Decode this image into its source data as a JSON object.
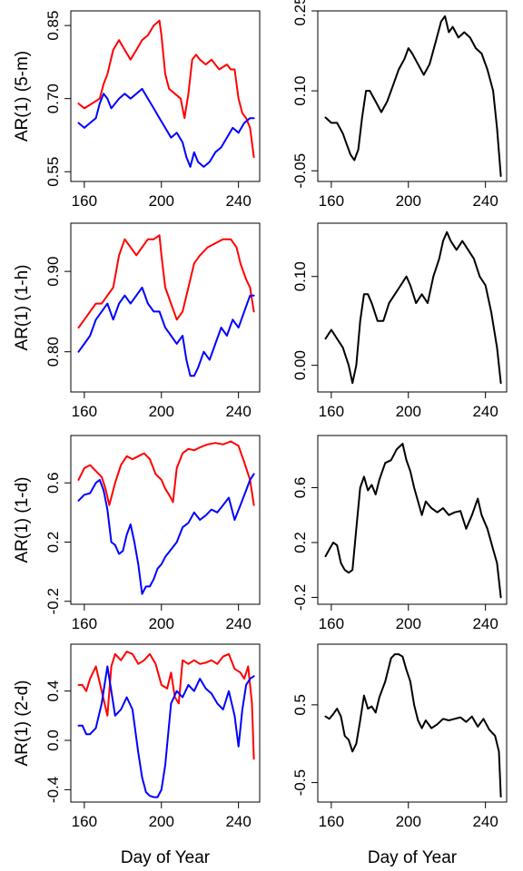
{
  "chart_data": [
    {
      "type": "line",
      "ylabel": "AR(1) (5-m)",
      "xlabel": "",
      "xlim": [
        153,
        251
      ],
      "ylim": [
        0.53,
        0.88
      ],
      "xticks": [
        160,
        200,
        240
      ],
      "yticks": [
        0.55,
        0.7,
        0.85
      ],
      "ytick_labels": [
        "0.55",
        "0.70",
        "0.85"
      ],
      "series": [
        {
          "color": "#ff0000",
          "x": [
            157,
            160,
            164,
            168,
            170,
            172,
            175,
            178,
            181,
            184,
            187,
            190,
            193,
            196,
            199,
            200,
            202,
            204,
            207,
            210,
            212,
            214,
            216,
            218,
            220,
            223,
            226,
            230,
            234,
            236,
            238,
            240,
            242,
            244,
            246,
            248
          ],
          "y": [
            0.69,
            0.68,
            0.69,
            0.7,
            0.73,
            0.75,
            0.8,
            0.82,
            0.8,
            0.78,
            0.8,
            0.82,
            0.83,
            0.85,
            0.86,
            0.83,
            0.75,
            0.72,
            0.71,
            0.7,
            0.66,
            0.71,
            0.78,
            0.79,
            0.78,
            0.77,
            0.78,
            0.76,
            0.77,
            0.76,
            0.76,
            0.7,
            0.67,
            0.66,
            0.64,
            0.58
          ]
        },
        {
          "color": "#0000ff",
          "x": [
            157,
            160,
            163,
            166,
            168,
            170,
            172,
            174,
            176,
            178,
            181,
            184,
            187,
            190,
            193,
            196,
            199,
            202,
            205,
            208,
            211,
            213,
            215,
            217,
            219,
            222,
            225,
            228,
            231,
            234,
            237,
            240,
            243,
            246,
            248
          ],
          "y": [
            0.65,
            0.64,
            0.65,
            0.66,
            0.69,
            0.71,
            0.7,
            0.68,
            0.69,
            0.7,
            0.71,
            0.7,
            0.71,
            0.72,
            0.7,
            0.68,
            0.66,
            0.64,
            0.62,
            0.63,
            0.61,
            0.58,
            0.56,
            0.59,
            0.57,
            0.56,
            0.57,
            0.59,
            0.6,
            0.62,
            0.64,
            0.63,
            0.65,
            0.66,
            0.66
          ]
        }
      ]
    },
    {
      "type": "line",
      "xlabel": "",
      "ylabel": "",
      "xlim": [
        153,
        251
      ],
      "ylim": [
        -0.07,
        0.25
      ],
      "xticks": [
        160,
        200,
        240
      ],
      "yticks": [
        -0.05,
        0.1,
        0.25
      ],
      "ytick_labels": [
        "-0.05",
        "0.10",
        "0.25"
      ],
      "series": [
        {
          "color": "#000000",
          "x": [
            157,
            160,
            163,
            166,
            168,
            170,
            172,
            174,
            176,
            178,
            180,
            183,
            186,
            189,
            192,
            195,
            198,
            200,
            202,
            205,
            208,
            211,
            214,
            217,
            219,
            221,
            223,
            226,
            229,
            232,
            235,
            238,
            241,
            244,
            246,
            248
          ],
          "y": [
            0.05,
            0.04,
            0.04,
            0.02,
            0.0,
            -0.02,
            -0.03,
            -0.01,
            0.05,
            0.1,
            0.1,
            0.08,
            0.06,
            0.08,
            0.11,
            0.14,
            0.16,
            0.18,
            0.17,
            0.15,
            0.13,
            0.15,
            0.19,
            0.23,
            0.24,
            0.21,
            0.22,
            0.2,
            0.21,
            0.2,
            0.18,
            0.17,
            0.14,
            0.1,
            0.03,
            -0.06
          ]
        }
      ]
    },
    {
      "type": "line",
      "ylabel": "AR(1) (1-h)",
      "xlabel": "",
      "xlim": [
        153,
        251
      ],
      "ylim": [
        0.75,
        0.96
      ],
      "xticks": [
        160,
        200,
        240
      ],
      "yticks": [
        0.8,
        0.9
      ],
      "ytick_labels": [
        "0.80",
        "0.90"
      ],
      "series": [
        {
          "color": "#ff0000",
          "x": [
            157,
            160,
            163,
            166,
            169,
            172,
            175,
            178,
            181,
            184,
            187,
            190,
            193,
            196,
            199,
            200,
            202,
            205,
            208,
            211,
            214,
            217,
            220,
            224,
            228,
            232,
            236,
            239,
            241,
            244,
            246,
            248
          ],
          "y": [
            0.83,
            0.84,
            0.85,
            0.86,
            0.86,
            0.87,
            0.88,
            0.92,
            0.94,
            0.93,
            0.92,
            0.93,
            0.94,
            0.94,
            0.945,
            0.92,
            0.88,
            0.86,
            0.84,
            0.85,
            0.88,
            0.91,
            0.92,
            0.93,
            0.935,
            0.94,
            0.94,
            0.93,
            0.91,
            0.89,
            0.88,
            0.85
          ]
        },
        {
          "color": "#0000ff",
          "x": [
            157,
            160,
            163,
            166,
            169,
            172,
            175,
            178,
            181,
            184,
            187,
            190,
            193,
            196,
            199,
            202,
            205,
            208,
            211,
            213,
            215,
            217,
            219,
            222,
            225,
            228,
            231,
            234,
            237,
            240,
            243,
            246,
            248
          ],
          "y": [
            0.8,
            0.81,
            0.82,
            0.84,
            0.85,
            0.86,
            0.84,
            0.86,
            0.87,
            0.86,
            0.87,
            0.88,
            0.86,
            0.85,
            0.85,
            0.83,
            0.82,
            0.81,
            0.82,
            0.79,
            0.77,
            0.77,
            0.78,
            0.8,
            0.79,
            0.81,
            0.83,
            0.82,
            0.84,
            0.83,
            0.85,
            0.87,
            0.87
          ]
        }
      ]
    },
    {
      "type": "line",
      "xlabel": "",
      "ylabel": "",
      "xlim": [
        153,
        251
      ],
      "ylim": [
        -0.03,
        0.16
      ],
      "xticks": [
        160,
        200,
        240
      ],
      "yticks": [
        0.0,
        0.1
      ],
      "ytick_labels": [
        "0.00",
        "0.10"
      ],
      "series": [
        {
          "color": "#000000",
          "x": [
            157,
            160,
            163,
            166,
            169,
            171,
            173,
            175,
            177,
            179,
            181,
            184,
            187,
            190,
            193,
            196,
            199,
            201,
            204,
            207,
            210,
            213,
            216,
            218,
            220,
            222,
            225,
            228,
            231,
            234,
            237,
            240,
            243,
            246,
            248
          ],
          "y": [
            0.03,
            0.04,
            0.03,
            0.02,
            0.0,
            -0.02,
            0.0,
            0.05,
            0.08,
            0.08,
            0.07,
            0.05,
            0.05,
            0.07,
            0.08,
            0.09,
            0.1,
            0.09,
            0.07,
            0.08,
            0.07,
            0.1,
            0.12,
            0.14,
            0.15,
            0.14,
            0.13,
            0.14,
            0.13,
            0.12,
            0.1,
            0.09,
            0.06,
            0.02,
            -0.02
          ]
        }
      ]
    },
    {
      "type": "line",
      "ylabel": "AR(1) (1-d)",
      "xlabel": "",
      "xlim": [
        153,
        251
      ],
      "ylim": [
        -0.22,
        0.92
      ],
      "xticks": [
        160,
        200,
        240
      ],
      "yticks": [
        -0.2,
        0.2,
        0.6
      ],
      "ytick_labels": [
        "-0.2",
        "0.2",
        "0.6"
      ],
      "series": [
        {
          "color": "#ff0000",
          "x": [
            157,
            160,
            163,
            166,
            169,
            171,
            173,
            176,
            179,
            182,
            185,
            188,
            191,
            194,
            197,
            200,
            202,
            204,
            206,
            208,
            211,
            214,
            217,
            220,
            224,
            228,
            232,
            236,
            240,
            243,
            246,
            248
          ],
          "y": [
            0.62,
            0.7,
            0.72,
            0.68,
            0.64,
            0.56,
            0.45,
            0.6,
            0.72,
            0.78,
            0.76,
            0.78,
            0.8,
            0.76,
            0.66,
            0.62,
            0.56,
            0.52,
            0.47,
            0.7,
            0.8,
            0.83,
            0.82,
            0.84,
            0.86,
            0.87,
            0.86,
            0.88,
            0.85,
            0.74,
            0.62,
            0.45
          ]
        },
        {
          "color": "#0000ff",
          "x": [
            157,
            160,
            163,
            166,
            168,
            170,
            172,
            174,
            176,
            178,
            180,
            182,
            184,
            186,
            188,
            190,
            192,
            194,
            196,
            198,
            200,
            202,
            205,
            208,
            211,
            214,
            217,
            220,
            223,
            226,
            229,
            232,
            235,
            238,
            241,
            244,
            246,
            248
          ],
          "y": [
            0.48,
            0.52,
            0.53,
            0.6,
            0.62,
            0.55,
            0.42,
            0.2,
            0.18,
            0.12,
            0.14,
            0.25,
            0.32,
            0.2,
            0.05,
            -0.15,
            -0.1,
            -0.1,
            -0.05,
            0.02,
            0.05,
            0.1,
            0.15,
            0.2,
            0.3,
            0.33,
            0.4,
            0.35,
            0.38,
            0.42,
            0.4,
            0.45,
            0.5,
            0.35,
            0.45,
            0.55,
            0.62,
            0.66
          ]
        }
      ]
    },
    {
      "type": "line",
      "xlabel": "",
      "ylabel": "",
      "xlim": [
        153,
        251
      ],
      "ylim": [
        -0.25,
        0.98
      ],
      "xticks": [
        160,
        200,
        240
      ],
      "yticks": [
        -0.2,
        0.2,
        0.6
      ],
      "ytick_labels": [
        "-0.2",
        "0.2",
        "0.6"
      ],
      "series": [
        {
          "color": "#000000",
          "x": [
            157,
            159,
            161,
            163,
            165,
            167,
            169,
            171,
            173,
            175,
            177,
            179,
            181,
            183,
            185,
            188,
            191,
            194,
            197,
            199,
            201,
            203,
            205,
            207,
            209,
            212,
            215,
            218,
            221,
            224,
            227,
            230,
            233,
            236,
            238,
            241,
            244,
            246,
            248
          ],
          "y": [
            0.1,
            0.15,
            0.2,
            0.18,
            0.05,
            0.0,
            -0.02,
            0.0,
            0.3,
            0.6,
            0.68,
            0.58,
            0.62,
            0.55,
            0.66,
            0.78,
            0.8,
            0.88,
            0.92,
            0.8,
            0.72,
            0.6,
            0.5,
            0.4,
            0.5,
            0.45,
            0.42,
            0.45,
            0.4,
            0.42,
            0.43,
            0.3,
            0.4,
            0.52,
            0.4,
            0.3,
            0.15,
            0.05,
            -0.2
          ]
        }
      ]
    },
    {
      "type": "line",
      "ylabel": "AR(1) (2-d)",
      "xlabel": "Day of Year",
      "xlim": [
        153,
        251
      ],
      "ylim": [
        -0.5,
        0.78
      ],
      "xticks": [
        160,
        200,
        240
      ],
      "yticks": [
        -0.4,
        0.0,
        0.4
      ],
      "ytick_labels": [
        "-0.4",
        "0.0",
        "0.4"
      ],
      "series": [
        {
          "color": "#ff0000",
          "x": [
            157,
            159,
            161,
            163,
            166,
            169,
            172,
            174,
            176,
            179,
            182,
            185,
            188,
            191,
            194,
            197,
            200,
            203,
            205,
            207,
            209,
            211,
            214,
            217,
            220,
            223,
            226,
            229,
            232,
            235,
            238,
            241,
            243,
            245,
            247,
            248
          ],
          "y": [
            0.45,
            0.45,
            0.4,
            0.5,
            0.6,
            0.4,
            0.2,
            0.6,
            0.7,
            0.65,
            0.72,
            0.7,
            0.62,
            0.65,
            0.7,
            0.62,
            0.45,
            0.42,
            0.55,
            0.35,
            0.3,
            0.65,
            0.62,
            0.65,
            0.62,
            0.63,
            0.65,
            0.62,
            0.68,
            0.7,
            0.58,
            0.55,
            0.5,
            0.6,
            0.3,
            -0.15
          ]
        },
        {
          "color": "#0000ff",
          "x": [
            157,
            159,
            161,
            163,
            166,
            169,
            172,
            174,
            176,
            179,
            182,
            185,
            188,
            190,
            192,
            194,
            196,
            198,
            200,
            202,
            205,
            208,
            211,
            214,
            217,
            220,
            223,
            226,
            229,
            232,
            235,
            238,
            240,
            242,
            244,
            246,
            248
          ],
          "y": [
            0.12,
            0.12,
            0.05,
            0.05,
            0.1,
            0.3,
            0.6,
            0.4,
            0.2,
            0.25,
            0.35,
            0.25,
            -0.1,
            -0.3,
            -0.42,
            -0.45,
            -0.46,
            -0.46,
            -0.4,
            -0.2,
            0.3,
            0.4,
            0.35,
            0.45,
            0.4,
            0.5,
            0.42,
            0.38,
            0.3,
            0.25,
            0.4,
            0.2,
            -0.05,
            0.25,
            0.45,
            0.5,
            0.52
          ]
        }
      ]
    },
    {
      "type": "line",
      "xlabel": "Day of Year",
      "ylabel": "",
      "xlim": [
        153,
        251
      ],
      "ylim": [
        -0.75,
        1.28
      ],
      "xticks": [
        160,
        200,
        240
      ],
      "yticks": [
        -0.5,
        0.5
      ],
      "ytick_labels": [
        "-0.5",
        "0.5"
      ],
      "series": [
        {
          "color": "#000000",
          "x": [
            157,
            159,
            161,
            163,
            165,
            167,
            169,
            171,
            173,
            175,
            177,
            179,
            181,
            183,
            185,
            188,
            191,
            193,
            195,
            197,
            199,
            201,
            203,
            205,
            207,
            209,
            212,
            215,
            218,
            221,
            224,
            227,
            230,
            233,
            236,
            239,
            242,
            245,
            247,
            248
          ],
          "y": [
            0.35,
            0.32,
            0.38,
            0.45,
            0.35,
            0.1,
            0.05,
            -0.1,
            0.0,
            0.3,
            0.62,
            0.45,
            0.48,
            0.4,
            0.6,
            0.8,
            1.1,
            1.15,
            1.15,
            1.12,
            0.95,
            0.8,
            0.5,
            0.3,
            0.2,
            0.3,
            0.2,
            0.25,
            0.32,
            0.3,
            0.32,
            0.34,
            0.28,
            0.35,
            0.22,
            0.32,
            0.18,
            0.1,
            -0.1,
            -0.68
          ]
        }
      ]
    }
  ]
}
